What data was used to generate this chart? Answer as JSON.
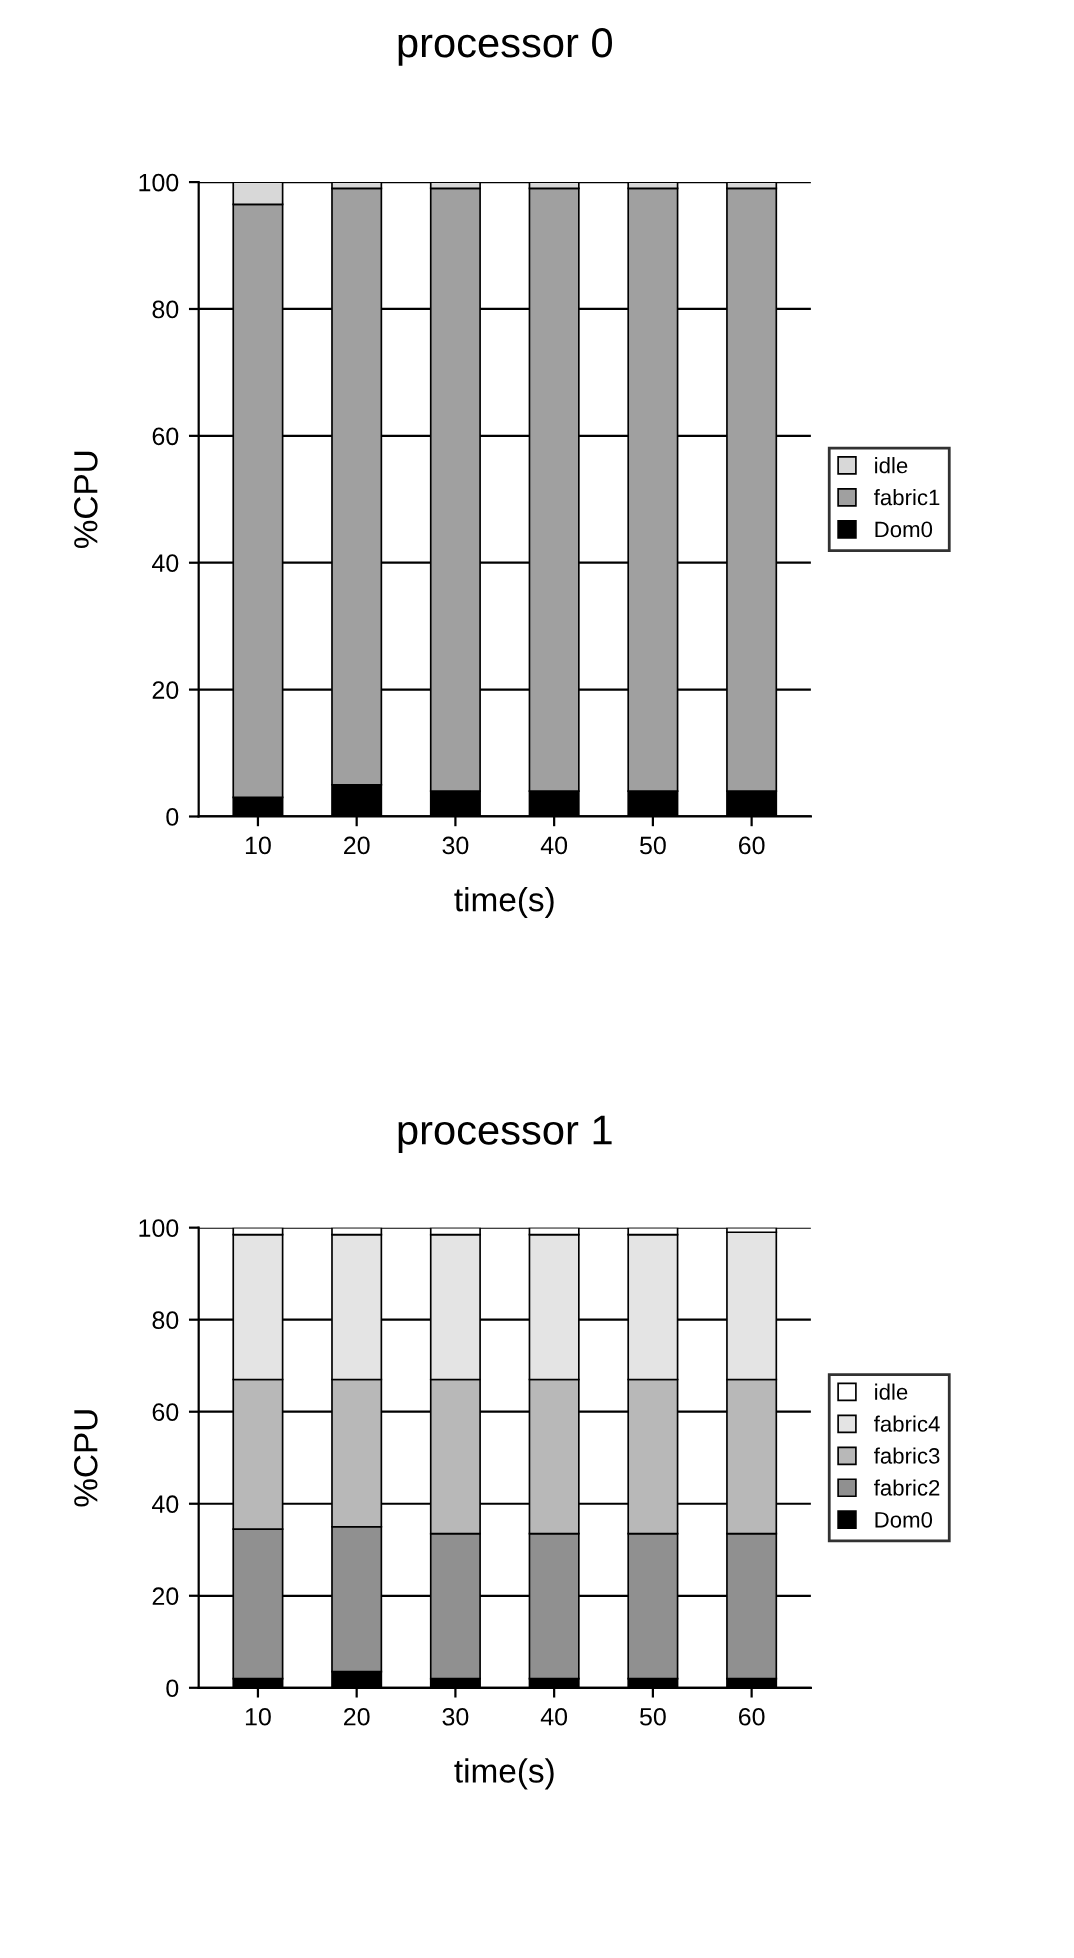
{
  "chart_data": [
    {
      "type": "bar",
      "title": "processor 0",
      "xlabel": "time(s)",
      "ylabel": "%CPU",
      "categories": [
        "10",
        "20",
        "30",
        "40",
        "50",
        "60"
      ],
      "stacked": true,
      "ylim": [
        0,
        100
      ],
      "yticks": [
        0,
        20,
        40,
        60,
        80,
        100
      ],
      "grid": "y",
      "legend": "right",
      "series": [
        {
          "name": "Dom0",
          "color": "#000000",
          "values": [
            3,
            5,
            4,
            4,
            4,
            4
          ]
        },
        {
          "name": "fabric1",
          "color": "#a0a0a0",
          "values": [
            93.5,
            94,
            95,
            95,
            95,
            95
          ]
        },
        {
          "name": "idle",
          "color": "#d8d8d8",
          "values": [
            3.5,
            1,
            1,
            1,
            1,
            1
          ]
        }
      ]
    },
    {
      "type": "bar",
      "title": "processor 1",
      "xlabel": "time(s)",
      "ylabel": "%CPU",
      "categories": [
        "10",
        "20",
        "30",
        "40",
        "50",
        "60"
      ],
      "stacked": true,
      "ylim": [
        0,
        100
      ],
      "yticks": [
        0,
        20,
        40,
        60,
        80,
        100
      ],
      "grid": "y",
      "legend": "right",
      "series": [
        {
          "name": "Dom0",
          "color": "#000000",
          "values": [
            2,
            3.5,
            2,
            2,
            2,
            2
          ]
        },
        {
          "name": "fabric2",
          "color": "#909090",
          "values": [
            32.5,
            31.5,
            31.5,
            31.5,
            31.5,
            31.5
          ]
        },
        {
          "name": "fabric3",
          "color": "#b8b8b8",
          "values": [
            32.5,
            32,
            33.5,
            33.5,
            33.5,
            33.5
          ]
        },
        {
          "name": "fabric4",
          "color": "#e4e4e4",
          "values": [
            31.5,
            31.5,
            31.5,
            31.5,
            31.5,
            32
          ]
        },
        {
          "name": "idle",
          "color": "#ffffff",
          "values": [
            1.5,
            1.5,
            1.5,
            1.5,
            1.5,
            1
          ]
        }
      ]
    }
  ]
}
